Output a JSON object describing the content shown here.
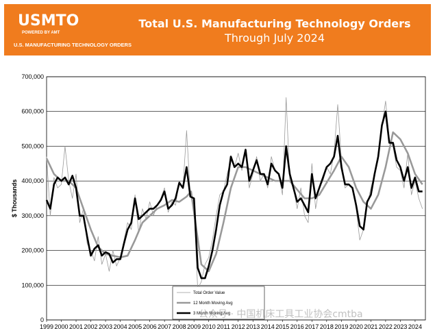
{
  "header": {
    "logo_text": "USMTO",
    "logo_powered": "POWERED BY AMT",
    "logo_org": "U.S. MANUFACTURING TECHNOLOGY ORDERS",
    "title": "Total U.S. Manufacturing Technology Orders",
    "subtitle": "Through July 2024",
    "banner_color": "#f07c1e"
  },
  "watermark": "公众号 · 中国机床工具工业协会cmtba",
  "chart_data": {
    "type": "line",
    "title": "Total U.S. Manufacturing Technology Orders",
    "subtitle": "Through July 2024",
    "ylabel": "$ Thousands",
    "xlabel": "",
    "ylim": [
      0,
      700000
    ],
    "y_ticks": [
      "0",
      "100,000",
      "200,000",
      "300,000",
      "400,000",
      "500,000",
      "600,000",
      "700,000"
    ],
    "y_tick_values": [
      0,
      100000,
      200000,
      300000,
      400000,
      500000,
      600000,
      700000
    ],
    "x_ticks": [
      "1999",
      "2000",
      "2001",
      "2002",
      "2003",
      "2004",
      "2005",
      "2006",
      "2007",
      "2008",
      "2009",
      "2010",
      "2011",
      "2012",
      "2013",
      "2014",
      "2015",
      "2016",
      "2017",
      "2018",
      "2019",
      "2020",
      "2021",
      "2022",
      "2023",
      "2024"
    ],
    "grid": true,
    "legend_position": "bottom-center",
    "series": [
      {
        "name": "Total Order Value",
        "color": "#999999",
        "x": [
          1999.0,
          1999.25,
          1999.5,
          1999.75,
          2000.0,
          2000.25,
          2000.5,
          2000.75,
          2001.0,
          2001.25,
          2001.5,
          2001.75,
          2002.0,
          2002.25,
          2002.5,
          2002.75,
          2003.0,
          2003.25,
          2003.5,
          2003.75,
          2004.0,
          2004.25,
          2004.5,
          2004.75,
          2005.0,
          2005.25,
          2005.5,
          2005.75,
          2006.0,
          2006.25,
          2006.5,
          2006.75,
          2007.0,
          2007.25,
          2007.5,
          2007.75,
          2008.0,
          2008.25,
          2008.5,
          2008.75,
          2009.0,
          2009.25,
          2009.5,
          2009.75,
          2010.0,
          2010.25,
          2010.5,
          2010.75,
          2011.0,
          2011.25,
          2011.5,
          2011.75,
          2012.0,
          2012.25,
          2012.5,
          2012.75,
          2013.0,
          2013.25,
          2013.5,
          2013.75,
          2014.0,
          2014.25,
          2014.5,
          2014.75,
          2015.0,
          2015.25,
          2015.5,
          2015.75,
          2016.0,
          2016.25,
          2016.5,
          2016.75,
          2017.0,
          2017.25,
          2017.5,
          2017.75,
          2018.0,
          2018.25,
          2018.5,
          2018.75,
          2019.0,
          2019.25,
          2019.5,
          2019.75,
          2020.0,
          2020.25,
          2020.5,
          2020.75,
          2021.0,
          2021.25,
          2021.5,
          2021.75,
          2022.0,
          2022.25,
          2022.5,
          2022.75,
          2023.0,
          2023.25,
          2023.5,
          2023.75,
          2024.0,
          2024.25,
          2024.5
        ],
        "values": [
          470000,
          300000,
          410000,
          380000,
          390000,
          500000,
          400000,
          350000,
          420000,
          280000,
          320000,
          220000,
          200000,
          170000,
          240000,
          160000,
          190000,
          140000,
          200000,
          155000,
          180000,
          230000,
          280000,
          260000,
          360000,
          250000,
          320000,
          290000,
          340000,
          300000,
          330000,
          350000,
          380000,
          310000,
          340000,
          330000,
          400000,
          380000,
          545000,
          360000,
          320000,
          90000,
          110000,
          160000,
          180000,
          230000,
          300000,
          360000,
          370000,
          420000,
          460000,
          440000,
          480000,
          430000,
          490000,
          380000,
          420000,
          470000,
          400000,
          420000,
          380000,
          470000,
          430000,
          420000,
          360000,
          640000,
          400000,
          380000,
          320000,
          380000,
          300000,
          280000,
          450000,
          320000,
          380000,
          400000,
          440000,
          420000,
          480000,
          620000,
          460000,
          380000,
          390000,
          380000,
          320000,
          230000,
          260000,
          330000,
          380000,
          420000,
          460000,
          560000,
          630000,
          520000,
          500000,
          440000,
          430000,
          380000,
          480000,
          360000,
          400000,
          350000,
          320000
        ]
      },
      {
        "name": "12 Month Moving Avg",
        "color": "#999999",
        "x": [
          1999.0,
          1999.5,
          2000.0,
          2000.5,
          2001.0,
          2001.5,
          2002.0,
          2002.5,
          2003.0,
          2003.5,
          2004.0,
          2004.5,
          2005.0,
          2005.5,
          2006.0,
          2006.5,
          2007.0,
          2007.5,
          2008.0,
          2008.5,
          2008.8,
          2009.0,
          2009.5,
          2010.0,
          2010.5,
          2011.0,
          2011.5,
          2012.0,
          2012.5,
          2013.0,
          2013.5,
          2014.0,
          2014.5,
          2015.0,
          2015.5,
          2016.0,
          2016.5,
          2017.0,
          2017.5,
          2018.0,
          2018.5,
          2019.0,
          2019.5,
          2020.0,
          2020.5,
          2021.0,
          2021.5,
          2022.0,
          2022.5,
          2023.0,
          2023.5,
          2024.0,
          2024.5
        ],
        "values": [
          465000,
          420000,
          400000,
          400000,
          380000,
          320000,
          260000,
          210000,
          190000,
          185000,
          180000,
          185000,
          230000,
          280000,
          300000,
          320000,
          330000,
          345000,
          340000,
          355000,
          370000,
          310000,
          160000,
          140000,
          190000,
          280000,
          380000,
          440000,
          440000,
          430000,
          420000,
          410000,
          400000,
          400000,
          400000,
          375000,
          350000,
          350000,
          360000,
          395000,
          430000,
          470000,
          440000,
          380000,
          340000,
          320000,
          360000,
          440000,
          540000,
          520000,
          480000,
          420000,
          390000
        ]
      },
      {
        "name": "3 Month Moving Avg",
        "color": "#000000",
        "x": [
          1999.0,
          1999.25,
          1999.5,
          1999.75,
          2000.0,
          2000.25,
          2000.5,
          2000.75,
          2001.0,
          2001.25,
          2001.5,
          2001.75,
          2002.0,
          2002.25,
          2002.5,
          2002.75,
          2003.0,
          2003.25,
          2003.5,
          2003.75,
          2004.0,
          2004.25,
          2004.5,
          2004.75,
          2005.0,
          2005.25,
          2005.5,
          2005.75,
          2006.0,
          2006.25,
          2006.5,
          2006.75,
          2007.0,
          2007.25,
          2007.5,
          2007.75,
          2008.0,
          2008.25,
          2008.5,
          2008.75,
          2009.0,
          2009.25,
          2009.5,
          2009.75,
          2010.0,
          2010.25,
          2010.5,
          2010.75,
          2011.0,
          2011.25,
          2011.5,
          2011.75,
          2012.0,
          2012.25,
          2012.5,
          2012.75,
          2013.0,
          2013.25,
          2013.5,
          2013.75,
          2014.0,
          2014.25,
          2014.5,
          2014.75,
          2015.0,
          2015.25,
          2015.5,
          2015.75,
          2016.0,
          2016.25,
          2016.5,
          2016.75,
          2017.0,
          2017.25,
          2017.5,
          2017.75,
          2018.0,
          2018.25,
          2018.5,
          2018.75,
          2019.0,
          2019.25,
          2019.5,
          2019.75,
          2020.0,
          2020.25,
          2020.5,
          2020.75,
          2021.0,
          2021.25,
          2021.5,
          2021.75,
          2022.0,
          2022.25,
          2022.5,
          2022.75,
          2023.0,
          2023.25,
          2023.5,
          2023.75,
          2024.0,
          2024.25,
          2024.5
        ],
        "values": [
          345000,
          320000,
          390000,
          410000,
          400000,
          410000,
          390000,
          415000,
          380000,
          300000,
          300000,
          240000,
          185000,
          205000,
          215000,
          185000,
          195000,
          190000,
          165000,
          175000,
          175000,
          220000,
          260000,
          280000,
          350000,
          290000,
          300000,
          310000,
          320000,
          320000,
          330000,
          345000,
          370000,
          320000,
          330000,
          350000,
          395000,
          380000,
          440000,
          355000,
          350000,
          150000,
          120000,
          120000,
          155000,
          200000,
          260000,
          330000,
          370000,
          390000,
          470000,
          440000,
          450000,
          440000,
          490000,
          400000,
          430000,
          460000,
          420000,
          420000,
          390000,
          450000,
          430000,
          420000,
          380000,
          500000,
          420000,
          380000,
          340000,
          350000,
          330000,
          310000,
          420000,
          350000,
          380000,
          410000,
          440000,
          450000,
          470000,
          530000,
          440000,
          390000,
          390000,
          380000,
          330000,
          270000,
          260000,
          340000,
          360000,
          420000,
          470000,
          560000,
          600000,
          510000,
          510000,
          460000,
          440000,
          400000,
          440000,
          380000,
          410000,
          370000,
          370000
        ]
      }
    ]
  }
}
